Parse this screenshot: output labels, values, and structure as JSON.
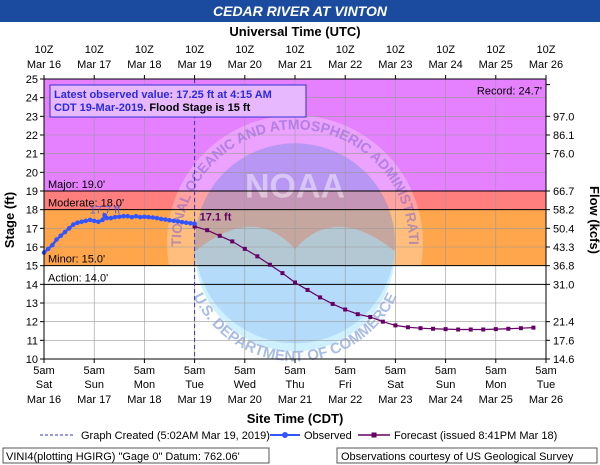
{
  "header": {
    "title": "CEDAR RIVER AT VINTON",
    "top_axis_title": "Universal Time (UTC)",
    "bottom_axis_title": "Site Time (CDT)"
  },
  "info_box": {
    "line1": "Latest observed value: 17.25 ft at 4:15 AM",
    "line2_a": "CDT 19-Mar-2019",
    "line2_b": ". Flood Stage is 15 ft"
  },
  "legend": {
    "graph_created": "Graph Created (5:02AM Mar 19, 2019)",
    "observed": "Observed",
    "forecast": "Forecast (issued 8:41PM Mar 18)"
  },
  "footer": {
    "left": "VINI4(plotting HGIRG) \"Gage 0\" Datum: 762.06'",
    "right": "Observations courtesy of US Geological Survey"
  },
  "colors": {
    "record_band": "#e580ff",
    "major_band": "#ff7f7f",
    "moderate_band": "#ffa64d",
    "minor_band": "#ffff4d",
    "observed_line": "#3355ff",
    "forecast_line": "#660066",
    "title_bg": "#1a4b9e"
  },
  "chart_data": {
    "type": "line",
    "ylabel": "Stage (ft)",
    "y2label": "Flow (kcfs)",
    "ylim": [
      10,
      25
    ],
    "y_ticks": [
      10,
      11,
      12,
      13,
      14,
      15,
      16,
      17,
      18,
      19,
      20,
      21,
      22,
      23,
      24,
      25
    ],
    "flow_ticks": [
      {
        "stage": 24.7,
        "label": ""
      },
      {
        "stage": 23,
        "label": "97.0"
      },
      {
        "stage": 22,
        "label": "86.1"
      },
      {
        "stage": 21,
        "label": "76.0"
      },
      {
        "stage": 19,
        "label": "66.7"
      },
      {
        "stage": 18,
        "label": "58.2"
      },
      {
        "stage": 17,
        "label": "50.4"
      },
      {
        "stage": 16,
        "label": "43.3"
      },
      {
        "stage": 15,
        "label": "36.8"
      },
      {
        "stage": 14,
        "label": "31.0"
      },
      {
        "stage": 12,
        "label": "21.4"
      },
      {
        "stage": 11,
        "label": "17.6"
      },
      {
        "stage": 10,
        "label": "14.6"
      }
    ],
    "xlim_hours": [
      0,
      240
    ],
    "bottom_ticks": [
      {
        "h": 0,
        "l1": "5am",
        "l2": "Sat",
        "l3": "Mar 16"
      },
      {
        "h": 24,
        "l1": "5am",
        "l2": "Sun",
        "l3": "Mar 17"
      },
      {
        "h": 48,
        "l1": "5am",
        "l2": "Mon",
        "l3": "Mar 18"
      },
      {
        "h": 72,
        "l1": "5am",
        "l2": "Tue",
        "l3": "Mar 19"
      },
      {
        "h": 96,
        "l1": "5am",
        "l2": "Wed",
        "l3": "Mar 20"
      },
      {
        "h": 120,
        "l1": "5am",
        "l2": "Thu",
        "l3": "Mar 21"
      },
      {
        "h": 144,
        "l1": "5am",
        "l2": "Fri",
        "l3": "Mar 22"
      },
      {
        "h": 168,
        "l1": "5am",
        "l2": "Sat",
        "l3": "Mar 23"
      },
      {
        "h": 192,
        "l1": "5am",
        "l2": "Sun",
        "l3": "Mar 24"
      },
      {
        "h": 216,
        "l1": "5am",
        "l2": "Mon",
        "l3": "Mar 25"
      },
      {
        "h": 240,
        "l1": "5am",
        "l2": "Tue",
        "l3": "Mar 26"
      }
    ],
    "top_ticks": [
      {
        "h": 0,
        "l1": "10Z",
        "l2": "Mar 16"
      },
      {
        "h": 24,
        "l1": "10Z",
        "l2": "Mar 17"
      },
      {
        "h": 48,
        "l1": "10Z",
        "l2": "Mar 18"
      },
      {
        "h": 72,
        "l1": "10Z",
        "l2": "Mar 19"
      },
      {
        "h": 96,
        "l1": "10Z",
        "l2": "Mar 20"
      },
      {
        "h": 120,
        "l1": "10Z",
        "l2": "Mar 21"
      },
      {
        "h": 144,
        "l1": "10Z",
        "l2": "Mar 22"
      },
      {
        "h": 168,
        "l1": "10Z",
        "l2": "Mar 23"
      },
      {
        "h": 192,
        "l1": "10Z",
        "l2": "Mar 24"
      },
      {
        "h": 216,
        "l1": "10Z",
        "l2": "Mar 25"
      },
      {
        "h": 240,
        "l1": "10Z",
        "l2": "Mar 26"
      }
    ],
    "thresholds": [
      {
        "name": "Record",
        "stage": 24.7,
        "label": "Record: 24.7'"
      },
      {
        "name": "Major",
        "stage": 19.0,
        "label": "Major: 19.0'"
      },
      {
        "name": "Moderate",
        "stage": 18.0,
        "label": "Moderate: 18.0'"
      },
      {
        "name": "Minor",
        "stage": 15.0,
        "label": "Minor: 15.0'"
      },
      {
        "name": "Action",
        "stage": 14.0,
        "label": "Action: 14.0'"
      }
    ],
    "graph_created_hour": 72,
    "observed": {
      "hours": [
        0,
        2,
        4,
        6,
        8,
        10,
        12,
        14,
        16,
        18,
        20,
        22,
        24,
        26,
        28,
        29,
        30,
        32,
        34,
        36,
        38,
        40,
        42,
        44,
        46,
        48,
        50,
        52,
        54,
        56,
        58,
        60,
        62,
        64,
        66,
        68,
        70,
        72
      ],
      "values": [
        15.7,
        15.9,
        16.1,
        16.4,
        16.6,
        16.8,
        17.0,
        17.2,
        17.3,
        17.35,
        17.4,
        17.45,
        17.4,
        17.35,
        17.45,
        17.7,
        17.55,
        17.55,
        17.6,
        17.62,
        17.65,
        17.65,
        17.6,
        17.65,
        17.6,
        17.62,
        17.6,
        17.58,
        17.55,
        17.5,
        17.47,
        17.43,
        17.4,
        17.37,
        17.33,
        17.3,
        17.27,
        17.25
      ]
    },
    "forecast": {
      "hours": [
        72,
        78,
        84,
        90,
        96,
        102,
        108,
        114,
        120,
        126,
        132,
        138,
        144,
        150,
        156,
        162,
        168,
        174,
        180,
        186,
        192,
        198,
        204,
        210,
        216,
        222,
        228,
        234
      ],
      "values": [
        17.1,
        16.9,
        16.6,
        16.3,
        15.9,
        15.5,
        15.05,
        14.6,
        14.1,
        13.7,
        13.3,
        12.95,
        12.65,
        12.4,
        12.25,
        12.0,
        11.8,
        11.7,
        11.65,
        11.62,
        11.6,
        11.58,
        11.58,
        11.58,
        11.6,
        11.62,
        11.65,
        11.68
      ]
    },
    "annotations": {
      "forecast_start_label": "17.1 ft",
      "observed_peak_label": "17.7 ft"
    },
    "watermark": {
      "text1": "NOAA",
      "text2": "NATIONAL OCEANIC AND ATMOSPHERIC ADMINISTRATION",
      "text3": "U.S. DEPARTMENT OF COMMERCE"
    }
  }
}
